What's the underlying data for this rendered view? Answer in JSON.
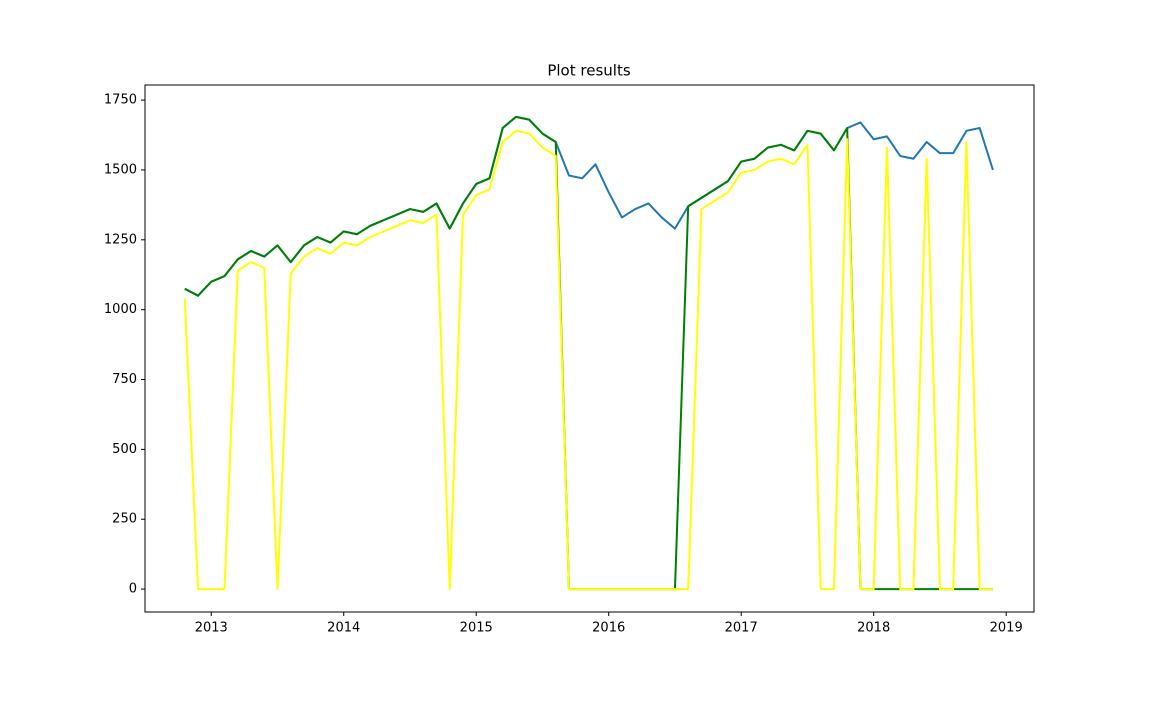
{
  "chart_data": {
    "type": "line",
    "title": "Plot results",
    "x": [
      2012.8,
      2012.9,
      2013.0,
      2013.1,
      2013.2,
      2013.3,
      2013.4,
      2013.5,
      2013.6,
      2013.7,
      2013.8,
      2013.9,
      2014.0,
      2014.1,
      2014.2,
      2014.3,
      2014.4,
      2014.5,
      2014.6,
      2014.7,
      2014.8,
      2014.9,
      2015.0,
      2015.1,
      2015.2,
      2015.3,
      2015.4,
      2015.5,
      2015.6,
      2015.7,
      2015.8,
      2015.9,
      2016.0,
      2016.1,
      2016.2,
      2016.3,
      2016.4,
      2016.5,
      2016.6,
      2016.7,
      2016.8,
      2016.9,
      2017.0,
      2017.1,
      2017.2,
      2017.3,
      2017.4,
      2017.5,
      2017.6,
      2017.7,
      2017.8,
      2017.9,
      2018.0,
      2018.1,
      2018.2,
      2018.3,
      2018.4,
      2018.5,
      2018.6,
      2018.7,
      2018.8,
      2018.9
    ],
    "series": [
      {
        "color": "#1f77b4",
        "values": [
          1075,
          1050,
          1100,
          1120,
          1180,
          1210,
          1190,
          1230,
          1170,
          1230,
          1260,
          1240,
          1280,
          1270,
          1300,
          1320,
          1340,
          1360,
          1350,
          1380,
          1290,
          1380,
          1450,
          1470,
          1650,
          1690,
          1680,
          1630,
          1600,
          1480,
          1470,
          1520,
          1420,
          1330,
          1360,
          1380,
          1330,
          1290,
          1370,
          1400,
          1430,
          1460,
          1530,
          1540,
          1580,
          1590,
          1570,
          1640,
          1630,
          1570,
          1650,
          1670,
          1610,
          1620,
          1550,
          1540,
          1600,
          1560,
          1560,
          1640,
          1650,
          1500
        ]
      },
      {
        "color": "#008000",
        "values": [
          1075,
          1050,
          1100,
          1120,
          1180,
          1210,
          1190,
          1230,
          1170,
          1230,
          1260,
          1240,
          1280,
          1270,
          1300,
          1320,
          1340,
          1360,
          1350,
          1380,
          1290,
          1380,
          1450,
          1470,
          1650,
          1690,
          1680,
          1630,
          1600,
          0,
          0,
          0,
          0,
          0,
          0,
          0,
          0,
          0,
          1370,
          1400,
          1430,
          1460,
          1530,
          1540,
          1580,
          1590,
          1570,
          1640,
          1630,
          1570,
          1650,
          0,
          0,
          0,
          0,
          0,
          0,
          0,
          0,
          0,
          0,
          0
        ]
      },
      {
        "color": "#ffff00",
        "values": [
          1040,
          0,
          0,
          0,
          1140,
          1170,
          1150,
          0,
          1130,
          1190,
          1220,
          1200,
          1240,
          1230,
          1260,
          1280,
          1300,
          1320,
          1310,
          1340,
          0,
          1340,
          1410,
          1430,
          1600,
          1640,
          1630,
          1580,
          1550,
          0,
          0,
          0,
          0,
          0,
          0,
          0,
          0,
          0,
          0,
          1360,
          1390,
          1420,
          1490,
          1500,
          1530,
          1540,
          1520,
          1590,
          0,
          0,
          1610,
          0,
          0,
          1580,
          0,
          0,
          1540,
          0,
          0,
          1600,
          0,
          0
        ]
      }
    ],
    "xlim": [
      2012.5,
      2019.21
    ],
    "xticks": [
      2013,
      2014,
      2015,
      2016,
      2017,
      2018,
      2019
    ],
    "ylim": [
      -82,
      1804
    ],
    "yticks": [
      0,
      250,
      500,
      750,
      1000,
      1250,
      1500,
      1750
    ]
  }
}
